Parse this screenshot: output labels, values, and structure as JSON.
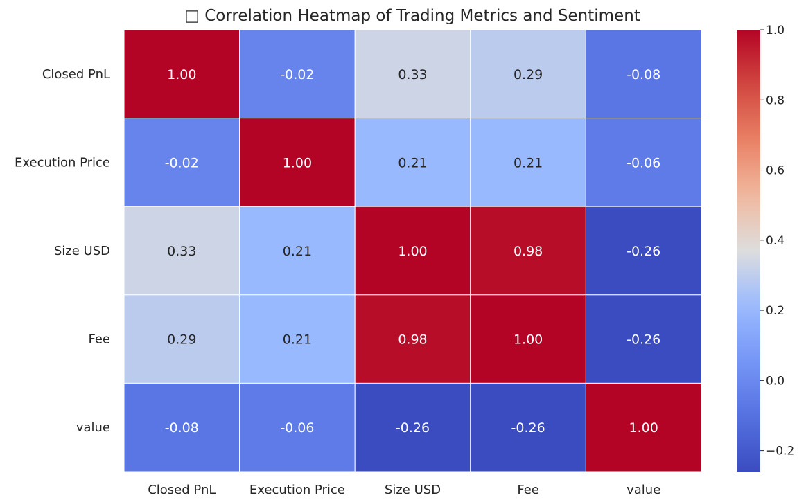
{
  "chart_data": {
    "type": "heatmap",
    "title": "□ Correlation Heatmap of Trading Metrics and Sentiment",
    "x_labels": [
      "Closed PnL",
      "Execution Price",
      "Size USD",
      "Fee",
      "value"
    ],
    "y_labels": [
      "Closed PnL",
      "Execution Price",
      "Size USD",
      "Fee",
      "value"
    ],
    "values": [
      [
        1.0,
        -0.02,
        0.33,
        0.29,
        -0.08
      ],
      [
        -0.02,
        1.0,
        0.21,
        0.21,
        -0.06
      ],
      [
        0.33,
        0.21,
        1.0,
        0.98,
        -0.26
      ],
      [
        0.29,
        0.21,
        0.98,
        1.0,
        -0.26
      ],
      [
        -0.08,
        -0.06,
        -0.26,
        -0.26,
        1.0
      ]
    ],
    "value_format": "0.00",
    "colormap": "coolwarm",
    "vmin": -0.26,
    "vmax": 1.0,
    "colorbar": {
      "position": "right",
      "ticks": [
        1.0,
        0.8,
        0.6,
        0.4,
        0.2,
        0.0,
        -0.2
      ],
      "tick_labels": [
        "1.0",
        "0.8",
        "0.6",
        "0.4",
        "0.2",
        "0.0",
        "−0.2"
      ]
    },
    "grid": false
  },
  "colors": {
    "background": "#ffffff",
    "cell_border": "#ffffff",
    "text_dark": "#262626",
    "text_light": "#ffffff"
  }
}
